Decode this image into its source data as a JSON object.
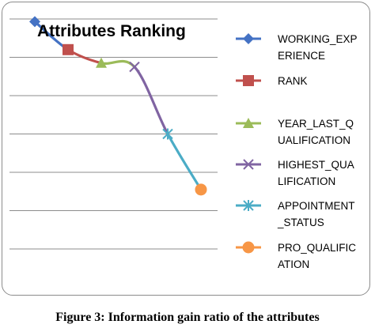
{
  "caption": "Figure 3: Information gain ratio of the attributes",
  "chart_data": {
    "type": "line",
    "title": "Attributes Ranking",
    "xlabel": "",
    "ylabel": "",
    "grid": true,
    "gridlines": 7,
    "legend_position": "right",
    "points": [
      {
        "x": 1,
        "y": 5.93
      },
      {
        "x": 2,
        "y": 5.2
      },
      {
        "x": 3,
        "y": 4.85
      },
      {
        "x": 4,
        "y": 4.75
      },
      {
        "x": 5,
        "y": 3.0
      },
      {
        "x": 6,
        "y": 1.55
      }
    ],
    "series": [
      {
        "name_lines": [
          "WORKING_EXP",
          "ERIENCE"
        ],
        "color": "#4472c4",
        "marker": "diamond"
      },
      {
        "name_lines": [
          "RANK"
        ],
        "color": "#c0504d",
        "marker": "square"
      },
      {
        "name_lines": [
          "YEAR_LAST_Q",
          "UALIFICATION"
        ],
        "color": "#9bbb59",
        "marker": "triangle"
      },
      {
        "name_lines": [
          "HIGHEST_QUA",
          "LIFICATION"
        ],
        "color": "#8064a2",
        "marker": "x"
      },
      {
        "name_lines": [
          "APPOINTMENT",
          "_STATUS"
        ],
        "color": "#4bacc6",
        "marker": "star"
      },
      {
        "name_lines": [
          "PRO_QUALIFIC",
          "ATION"
        ],
        "color": "#f79646",
        "marker": "circle"
      }
    ]
  }
}
